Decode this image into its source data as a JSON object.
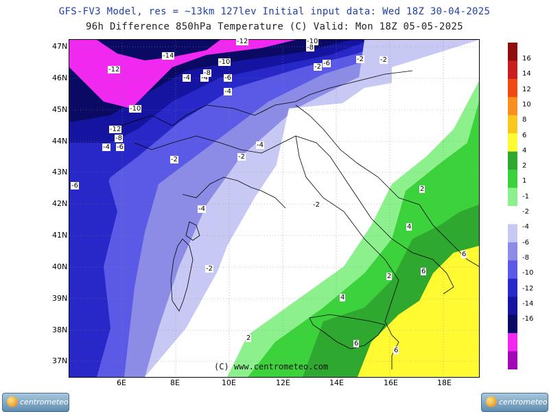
{
  "header": {
    "line1": "GFS-FV3 Model, res = ~13km 127lev   Initial input data: Wed 18Z 30-04-2025",
    "line2": "96h Difference 850hPa Temperature (C)  Valid: Mon 18Z 05-05-2025"
  },
  "axes": {
    "lat_labels": [
      "47N",
      "46N",
      "45N",
      "44N",
      "43N",
      "42N",
      "41N",
      "40N",
      "39N",
      "38N",
      "37N"
    ],
    "lon_labels": [
      "6E",
      "8E",
      "10E",
      "12E",
      "14E",
      "16E",
      "18E"
    ]
  },
  "credit": "(C) www.centrometeo.com",
  "logo_text": "centrometeo",
  "colorbar": {
    "labels": [
      "16",
      "14",
      "12",
      "10",
      "8",
      "6",
      "4",
      "2",
      "1",
      "-1",
      "-2",
      "-4",
      "-6",
      "-8",
      "-10",
      "-12",
      "-14",
      "-16"
    ],
    "colors": [
      "#8e0e0e",
      "#c81e1e",
      "#f04a14",
      "#f7901e",
      "#f8c81e",
      "#fffa32",
      "#2ea82e",
      "#3cd23c",
      "#8cf08c",
      "#ffffff",
      "#c8c8f5",
      "#8c8ce6",
      "#5a5ae6",
      "#2828c8",
      "#1414a0",
      "#0a0a64",
      "#f028f0",
      "#a00ab4"
    ]
  },
  "contour_labels": [
    {
      "text": "-12"
    },
    {
      "text": "-10"
    },
    {
      "text": "-8"
    },
    {
      "text": "-14"
    },
    {
      "text": "-10"
    },
    {
      "text": "-6"
    },
    {
      "text": "-4"
    },
    {
      "text": "-2"
    },
    {
      "text": "-12"
    },
    {
      "text": "-4"
    },
    {
      "text": "-8"
    },
    {
      "text": "-6"
    },
    {
      "text": "-4"
    },
    {
      "text": "-10"
    },
    {
      "text": "-12"
    },
    {
      "text": "-8"
    },
    {
      "text": "-4"
    },
    {
      "text": "-6"
    },
    {
      "text": "-2"
    },
    {
      "text": "-4"
    },
    {
      "text": "-2"
    },
    {
      "text": "-6"
    },
    {
      "text": "-2"
    },
    {
      "text": "-4"
    },
    {
      "text": "-2"
    },
    {
      "text": "-2"
    },
    {
      "text": "2"
    },
    {
      "text": "4"
    },
    {
      "text": "6"
    },
    {
      "text": "2"
    },
    {
      "text": "6"
    },
    {
      "text": "4"
    },
    {
      "text": "6"
    },
    {
      "text": "6"
    },
    {
      "text": "2"
    },
    {
      "text": "-2"
    }
  ]
}
